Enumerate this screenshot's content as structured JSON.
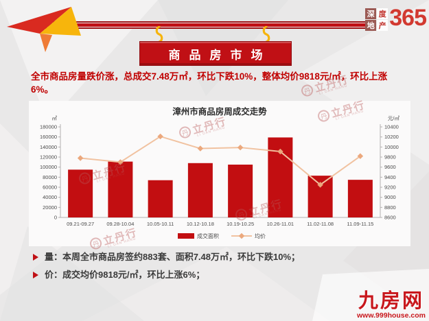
{
  "colors": {
    "accent_red": "#c01015",
    "bar_red": "#c20e11",
    "line_peach": "#f1c2a0",
    "marker_peach": "#eba87d",
    "headline_red": "#c00000",
    "hook_yellow": "#f6b40e",
    "background": "#e9e8e8"
  },
  "header": {
    "sign_title": "商品房市场",
    "logo": {
      "grid": [
        "深",
        "度",
        "地",
        "产"
      ],
      "number": "365"
    }
  },
  "headline": "全市商品房量跌价涨，总成交7.48万㎡，环比下跌10%，整体均价9818元/㎡，环比上涨6%。",
  "chart_data": {
    "type": "bar",
    "title": "漳州市商品房周成交走势",
    "categories": [
      "09.21-09.27",
      "09.28-10.04",
      "10.05-10.11",
      "10.12-10.18",
      "10.19-10.25",
      "10.26-11.01",
      "11.02-11.08",
      "11.09-11.15"
    ],
    "series": [
      {
        "name": "成交面积",
        "type": "bar",
        "axis": "left",
        "color": "#c20e11",
        "values": [
          95000,
          111000,
          74000,
          108000,
          105000,
          159000,
          83000,
          74800
        ]
      },
      {
        "name": "均价",
        "type": "line",
        "axis": "right",
        "color": "#f1c2a0",
        "marker_color": "#eba87d",
        "values": [
          9780,
          9700,
          10210,
          9970,
          9990,
          9910,
          9250,
          9818
        ]
      }
    ],
    "left_axis": {
      "unit": "㎡",
      "min": 0,
      "max": 180000,
      "step": 20000
    },
    "right_axis": {
      "unit": "元/㎡",
      "min": 8600,
      "max": 10400,
      "step": 200
    },
    "grid": false,
    "legend_position": "bottom"
  },
  "bullets": [
    {
      "text": "量：本周全市商品房签约883套、面积7.48万㎡，环比下跌10%；"
    },
    {
      "text": "价：成交均价9818元/㎡，环比上涨6%；"
    }
  ],
  "watermark": {
    "circle_char": "丹",
    "text": "立丹行",
    "subtext": "LI DAN HANG"
  },
  "footer_logo": {
    "name": "九房网",
    "url": "www.999house.com"
  },
  "icons": {
    "arrow_ribbon": "folded paper arrow pointing left",
    "s_hook": "yellow S-shaped hanging hook",
    "bullet_arrow": "red right-pointing triangle"
  }
}
